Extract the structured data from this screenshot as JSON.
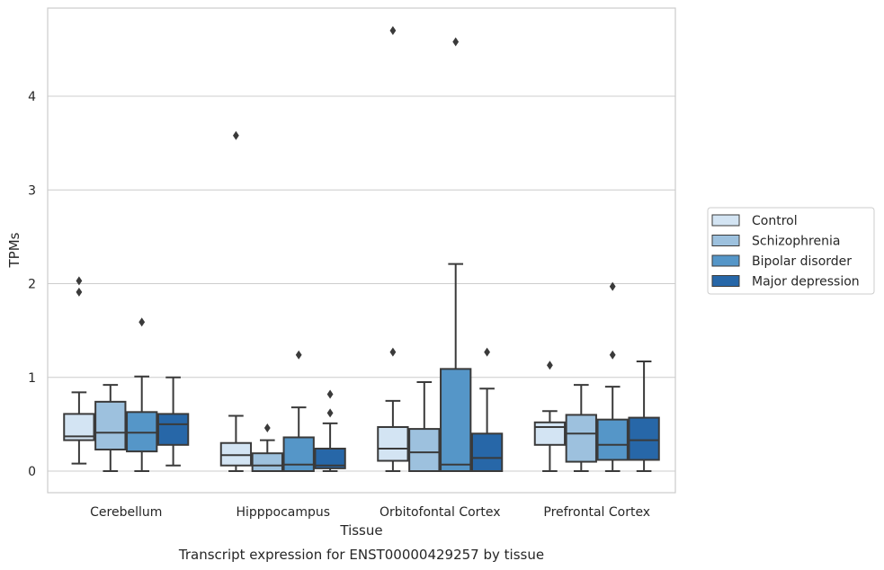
{
  "chart_data": {
    "type": "box",
    "title": "",
    "caption": "Transcript expression for ENST00000429257 by tissue",
    "xlabel": "Tissue",
    "ylabel": "TPMs",
    "ylim": [
      -0.23,
      4.9
    ],
    "yticks": [
      0,
      1,
      2,
      3,
      4
    ],
    "grid": "horizontal",
    "legend_position": "right",
    "categories": [
      "Cerebellum",
      "Hipppocampus",
      "Orbitofontal Cortex",
      "Prefrontal Cortex"
    ],
    "series": [
      {
        "name": "Control",
        "color": "#d3e4f3",
        "boxes": [
          {
            "whislo": 0.08,
            "q1": 0.33,
            "med": 0.37,
            "q3": 0.61,
            "whishi": 0.84,
            "fliers": [
              1.91,
              2.03
            ]
          },
          {
            "whislo": 0.0,
            "q1": 0.06,
            "med": 0.17,
            "q3": 0.3,
            "whishi": 0.59,
            "fliers": [
              3.58
            ]
          },
          {
            "whislo": 0.0,
            "q1": 0.11,
            "med": 0.24,
            "q3": 0.47,
            "whishi": 0.75,
            "fliers": [
              1.27
            ]
          },
          {
            "whislo": 0.0,
            "q1": 0.28,
            "med": 0.47,
            "q3": 0.52,
            "whishi": 0.64,
            "fliers": [
              1.13
            ]
          }
        ]
      },
      {
        "name": "Schizophrenia",
        "color": "#9dc1de",
        "boxes": [
          {
            "whislo": 0.0,
            "q1": 0.23,
            "med": 0.41,
            "q3": 0.74,
            "whishi": 0.92,
            "fliers": []
          },
          {
            "whislo": 0.0,
            "q1": 0.0,
            "med": 0.06,
            "q3": 0.19,
            "whishi": 0.33,
            "fliers": [
              0.46
            ]
          },
          {
            "whislo": 0.0,
            "q1": 0.0,
            "med": 0.2,
            "q3": 0.45,
            "whishi": 0.95,
            "fliers": []
          },
          {
            "whislo": 0.0,
            "q1": 0.1,
            "med": 0.4,
            "q3": 0.6,
            "whishi": 0.92,
            "fliers": []
          }
        ]
      },
      {
        "name": "Bipolar disorder",
        "color": "#5596c8",
        "boxes": [
          {
            "whislo": 0.0,
            "q1": 0.21,
            "med": 0.41,
            "q3": 0.63,
            "whishi": 1.01,
            "fliers": [
              1.59
            ]
          },
          {
            "whislo": 0.0,
            "q1": 0.0,
            "med": 0.07,
            "q3": 0.36,
            "whishi": 0.68,
            "fliers": [
              1.24
            ]
          },
          {
            "whislo": 0.0,
            "q1": 0.0,
            "med": 0.07,
            "q3": 1.09,
            "whishi": 2.21,
            "fliers": [
              4.58
            ]
          },
          {
            "whislo": 0.0,
            "q1": 0.12,
            "med": 0.28,
            "q3": 0.55,
            "whishi": 0.9,
            "fliers": [
              1.24,
              1.97
            ]
          }
        ]
      },
      {
        "name": "Major depression",
        "color": "#2767a8",
        "boxes": [
          {
            "whislo": 0.06,
            "q1": 0.28,
            "med": 0.5,
            "q3": 0.61,
            "whishi": 1.0,
            "fliers": []
          },
          {
            "whislo": 0.0,
            "q1": 0.03,
            "med": 0.06,
            "q3": 0.24,
            "whishi": 0.51,
            "fliers": [
              0.62,
              0.82
            ]
          },
          {
            "whislo": 0.0,
            "q1": 0.0,
            "med": 0.14,
            "q3": 0.4,
            "whishi": 0.88,
            "fliers": [
              1.27
            ]
          },
          {
            "whislo": 0.0,
            "q1": 0.12,
            "med": 0.33,
            "q3": 0.57,
            "whishi": 1.17,
            "fliers": []
          }
        ]
      }
    ],
    "extra_fliers": [
      {
        "category": 2,
        "series": 0,
        "value": 4.7
      }
    ]
  }
}
